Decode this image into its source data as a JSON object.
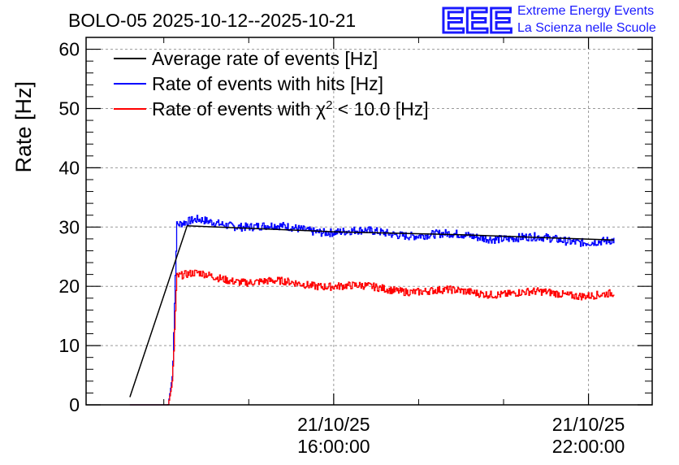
{
  "title": "BOLO-05 2025-10-12--2025-10-21",
  "logo": {
    "mark": "EEE",
    "line1": "Extreme Energy Events",
    "line2": "La Scienza nelle Scuole",
    "color": "#1a1aff"
  },
  "chart_data": {
    "type": "line",
    "title": "BOLO-05 2025-10-12--2025-10-21",
    "ylabel": "Rate [Hz]",
    "xlabel": "",
    "ylim": [
      0,
      62
    ],
    "yticks": [
      0,
      10,
      20,
      30,
      40,
      50,
      60
    ],
    "xlim_hours": [
      10.17,
      23.5
    ],
    "xticks": [
      {
        "hour": 16,
        "date": "21/10/25",
        "time": "16:00:00"
      },
      {
        "hour": 22,
        "date": "21/10/25",
        "time": "22:00:00"
      }
    ],
    "grid": true,
    "legend_position": "top-left",
    "series": [
      {
        "name": "Average rate of events [Hz]",
        "color": "#000000",
        "points": [
          [
            11.2,
            1.3
          ],
          [
            12.55,
            30.2
          ],
          [
            16,
            29.2
          ],
          [
            19,
            28.7
          ],
          [
            22.6,
            27.8
          ]
        ]
      },
      {
        "name": "Rate of events with hits [Hz]",
        "color": "#0000ff",
        "start_hour": 11.2,
        "step_hour": 12.09,
        "end_hour": 22.6,
        "trend": [
          [
            11.2,
            0
          ],
          [
            12.1,
            0
          ],
          [
            12.2,
            5
          ],
          [
            12.3,
            30.2
          ],
          [
            12.8,
            31
          ],
          [
            14,
            30.2
          ],
          [
            16,
            29.3
          ],
          [
            19,
            28.5
          ],
          [
            22.6,
            27.5
          ]
        ],
        "noise_amplitude": 0.7
      },
      {
        "name": "Rate of events with χ² < 10.0 [Hz]",
        "legend_label_prefix": "Rate of events with ",
        "legend_label_chi": "χ",
        "legend_label_sup": "2",
        "legend_label_suffix": " < 10.0 [Hz]",
        "color": "#ff0000",
        "start_hour": 11.2,
        "end_hour": 22.6,
        "trend": [
          [
            11.2,
            0
          ],
          [
            12.1,
            0
          ],
          [
            12.2,
            4
          ],
          [
            12.3,
            21.5
          ],
          [
            12.8,
            22
          ],
          [
            14,
            20.8
          ],
          [
            16,
            20.2
          ],
          [
            17,
            19.6
          ],
          [
            19,
            19
          ],
          [
            22.6,
            18.6
          ]
        ],
        "noise_amplitude": 0.65
      }
    ]
  }
}
